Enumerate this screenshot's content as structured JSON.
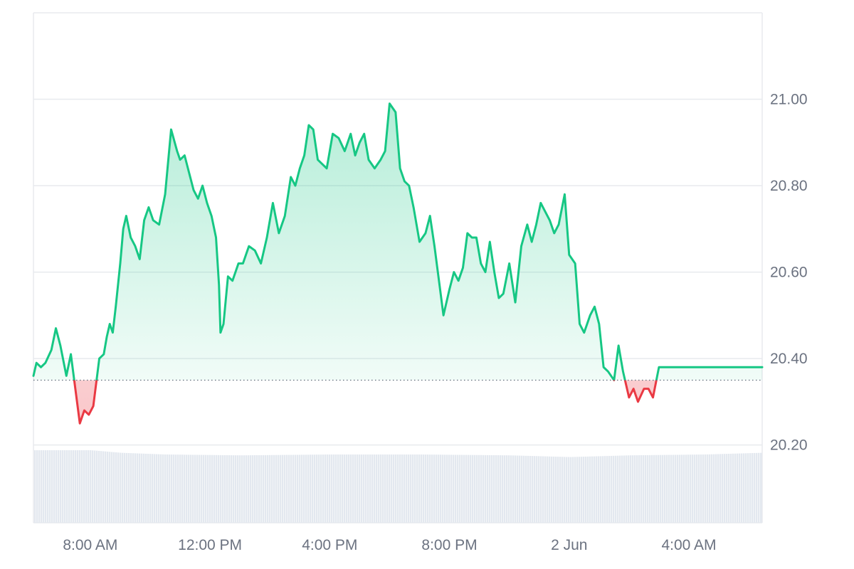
{
  "chart_data": {
    "type": "area",
    "title": "",
    "xlabel": "",
    "ylabel": "",
    "baseline": 20.35,
    "ylim": [
      20.02,
      21.2
    ],
    "y_ticks": [
      "20.20",
      "20.40",
      "20.60",
      "20.80",
      "21.00"
    ],
    "y_tick_values": [
      20.2,
      20.4,
      20.6,
      20.8,
      21.0
    ],
    "x_ticks": [
      "8:00 AM",
      "12:00 PM",
      "4:00 PM",
      "8:00 PM",
      "2 Jun",
      "4:00 AM"
    ],
    "x_tick_hours": [
      8.0,
      12.0,
      16.0,
      20.0,
      24.0,
      28.0
    ],
    "x_range_hours": [
      6.1,
      30.45
    ],
    "colors": {
      "up_line": "#16c784",
      "up_fill": "#16c784",
      "down_line": "#ea3943",
      "down_fill": "#ea3943",
      "grid": "#e8eaee",
      "volume": "#e3e8ef",
      "baseline": "#5f6b7a"
    },
    "series": [
      {
        "x": [
          6.1,
          6.2,
          6.35,
          6.5,
          6.7,
          6.85,
          7.0,
          7.2,
          7.35,
          7.5,
          7.65,
          7.8,
          7.95,
          8.1,
          8.3,
          8.45,
          8.55,
          8.65,
          8.75,
          8.85,
          9.0,
          9.1,
          9.2,
          9.35,
          9.5,
          9.65,
          9.8,
          9.95,
          10.1,
          10.3,
          10.5,
          10.7,
          10.9,
          11.0,
          11.15,
          11.3,
          11.45,
          11.6,
          11.75,
          11.9,
          12.05,
          12.2,
          12.3,
          12.35,
          12.45,
          12.6,
          12.75,
          12.95,
          13.1,
          13.3,
          13.5,
          13.7,
          13.9,
          14.1,
          14.3,
          14.5,
          14.7,
          14.85,
          15.0,
          15.15,
          15.3,
          15.45,
          15.6,
          15.75,
          15.9,
          16.1,
          16.3,
          16.5,
          16.7,
          16.85,
          17.0,
          17.15,
          17.3,
          17.5,
          17.7,
          17.85,
          18.0,
          18.2,
          18.35,
          18.5,
          18.65,
          18.8,
          19.0,
          19.2,
          19.35,
          19.5,
          19.65,
          19.8,
          20.0,
          20.15,
          20.3,
          20.45,
          20.6,
          20.75,
          20.9,
          21.05,
          21.2,
          21.35,
          21.5,
          21.65,
          21.8,
          22.0,
          22.2,
          22.4,
          22.6,
          22.75,
          22.9,
          23.05,
          23.2,
          23.35,
          23.5,
          23.65,
          23.85,
          24.0,
          24.2,
          24.35,
          24.5,
          24.7,
          24.85,
          25.0,
          25.15,
          25.3,
          25.5,
          25.65,
          25.8,
          26.0,
          26.15,
          26.3,
          26.5,
          26.65,
          26.8,
          27.0,
          27.15,
          27.3,
          27.45,
          27.6,
          27.75,
          27.9,
          28.05,
          28.2,
          28.35,
          28.5,
          28.65,
          28.8,
          28.95,
          29.1,
          29.25,
          29.4,
          29.55,
          29.7,
          29.85,
          29.95,
          30.05,
          30.2,
          30.3,
          30.4,
          30.45
        ],
        "values": [
          20.36,
          20.39,
          20.38,
          20.39,
          20.42,
          20.47,
          20.43,
          20.36,
          20.41,
          20.33,
          20.25,
          20.28,
          20.27,
          20.29,
          20.4,
          20.41,
          20.45,
          20.48,
          20.46,
          20.52,
          20.62,
          20.7,
          20.73,
          20.68,
          20.66,
          20.63,
          20.72,
          20.75,
          20.72,
          20.71,
          20.78,
          20.93,
          20.88,
          20.86,
          20.87,
          20.83,
          20.79,
          20.77,
          20.8,
          20.76,
          20.73,
          20.68,
          20.57,
          20.46,
          20.48,
          20.59,
          20.58,
          20.62,
          20.62,
          20.66,
          20.65,
          20.62,
          20.68,
          20.76,
          20.69,
          20.73,
          20.82,
          20.8,
          20.84,
          20.87,
          20.94,
          20.93,
          20.86,
          20.85,
          20.84,
          20.92,
          20.91,
          20.88,
          20.92,
          20.87,
          20.9,
          20.92,
          20.86,
          20.84,
          20.86,
          20.88,
          20.99,
          20.97,
          20.84,
          20.81,
          20.8,
          20.75,
          20.67,
          20.69,
          20.73,
          20.66,
          20.58,
          20.5,
          20.56,
          20.6,
          20.58,
          20.61,
          20.69,
          20.68,
          20.68,
          20.62,
          20.6,
          20.67,
          20.6,
          20.54,
          20.55,
          20.62,
          20.53,
          20.66,
          20.71,
          20.67,
          20.71,
          20.76,
          20.74,
          20.72,
          20.69,
          20.71,
          20.78,
          20.64,
          20.62,
          20.48,
          20.46,
          20.5,
          20.52,
          20.48,
          20.38,
          20.37,
          20.35,
          20.43,
          20.37,
          20.31,
          20.33,
          20.3,
          20.33,
          20.33,
          20.31,
          20.38,
          20.38,
          20.38,
          20.38,
          20.38,
          20.38,
          20.38,
          20.38,
          20.38,
          20.38,
          20.38,
          20.38,
          20.38,
          20.38,
          20.38,
          20.38,
          20.38,
          20.38,
          20.38,
          20.38,
          20.38,
          20.38,
          20.38,
          20.38,
          20.38,
          20.38
        ]
      }
    ],
    "volume": {
      "x": [
        6.1,
        8.0,
        9.0,
        10.5,
        13.0,
        16.0,
        19.0,
        22.0,
        24.0,
        26.0,
        28.5,
        30.45
      ],
      "values": [
        0.85,
        0.85,
        0.82,
        0.8,
        0.79,
        0.8,
        0.8,
        0.79,
        0.77,
        0.79,
        0.8,
        0.82
      ]
    }
  }
}
